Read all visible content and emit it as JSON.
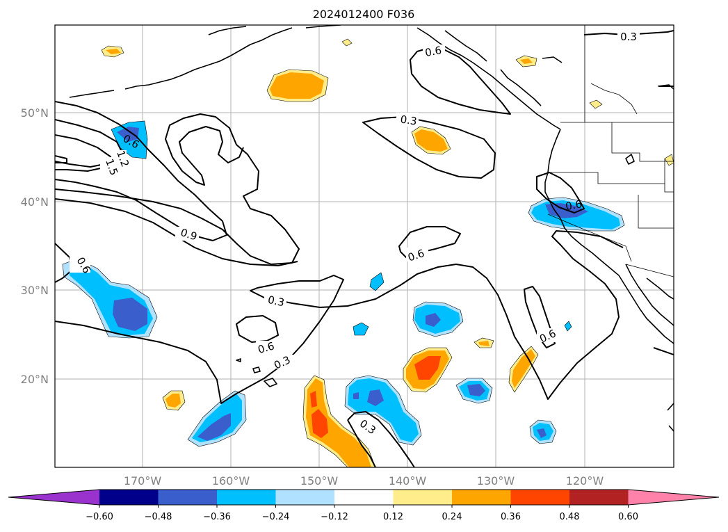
{
  "title": "2024012400 F036",
  "lon_ticks": [
    "170°W",
    "160°W",
    "150°W",
    "140°W",
    "130°W",
    "120°W"
  ],
  "lat_ticks": [
    "50°N",
    "40°N",
    "30°N",
    "20°N"
  ],
  "colorbar": {
    "colors": [
      "#9a32cd",
      "#00008b",
      "#3a5fcd",
      "#00bfff",
      "#b0e2ff",
      "#ffffff",
      "#ffec8b",
      "#ffa500",
      "#ff4500",
      "#b22222",
      "#ff82ab"
    ],
    "tick_labels": [
      "−0.60",
      "−0.48",
      "−0.36",
      "−0.24",
      "−0.12",
      "0.12",
      "0.24",
      "0.36",
      "0.48",
      "0.60"
    ],
    "extend": "both"
  },
  "contour_labels": [
    "0.3",
    "0.6",
    "0.3",
    "0.6",
    "0.6",
    "1.2",
    "1.5",
    "0.9",
    "0.6",
    "0.6",
    "0.3",
    "0.6",
    "0.3",
    "0.6",
    "0.3"
  ]
}
